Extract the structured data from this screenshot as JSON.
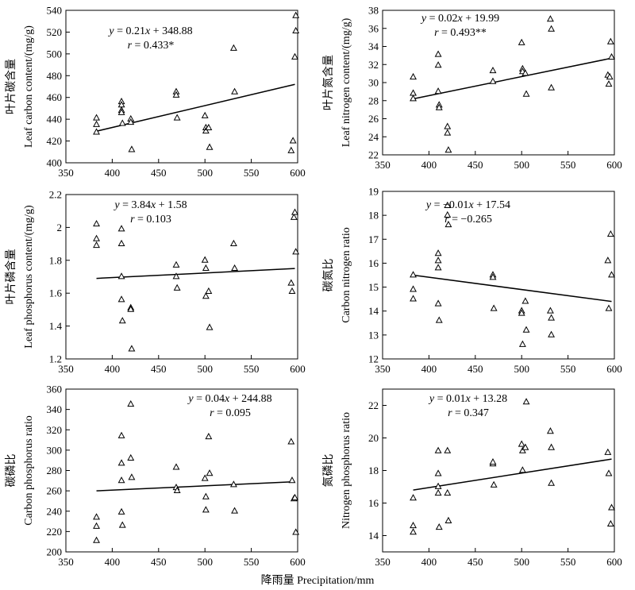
{
  "figure": {
    "xlabel": "降雨量 Precipitation/mm"
  },
  "chart_data": [
    {
      "type": "scatter",
      "ylabel_cn": "叶片碳含量",
      "ylabel_en": "Leaf carbon content/(mg/g)",
      "equation_y": "y",
      "equation_rest": " = 0.21",
      "equation_x": "x",
      "equation_tail": " + 348.88",
      "r_label": "r",
      "r_text": " = 0.433*",
      "xlim": [
        350,
        600
      ],
      "ylim": [
        400,
        540
      ],
      "xticks": [
        350,
        400,
        450,
        500,
        550,
        600
      ],
      "yticks": [
        400,
        420,
        440,
        460,
        480,
        500,
        520,
        540
      ],
      "fit": {
        "x": [
          383,
          597
        ],
        "y": [
          429,
          472
        ]
      },
      "x": [
        383,
        383,
        383,
        410,
        410,
        410,
        410,
        411,
        420,
        420,
        421,
        469,
        469,
        470,
        500,
        501,
        501,
        504,
        505,
        531,
        532,
        593,
        595,
        597,
        598,
        598
      ],
      "y": [
        441,
        435,
        428,
        456,
        453,
        448,
        446,
        436,
        440,
        437,
        412,
        465,
        462,
        441,
        443,
        432,
        429,
        432,
        414,
        505,
        465,
        411,
        420,
        497,
        535,
        521
      ]
    },
    {
      "type": "scatter",
      "ylabel_cn": "叶片氮含量",
      "ylabel_en": "Leaf nitrogen content/(mg/g)",
      "equation_y": "y",
      "equation_rest": " = 0.02",
      "equation_x": "x",
      "equation_tail": " + 19.99",
      "r_label": "r",
      "r_text": " = 0.493**",
      "xlim": [
        350,
        600
      ],
      "ylim": [
        22,
        38
      ],
      "xticks": [
        350,
        400,
        450,
        500,
        550,
        600
      ],
      "yticks": [
        22,
        24,
        26,
        28,
        30,
        32,
        34,
        36,
        38
      ],
      "fit": {
        "x": [
          383,
          597
        ],
        "y": [
          28.2,
          32.7
        ]
      },
      "x": [
        383,
        383,
        383,
        410,
        410,
        410,
        411,
        411,
        420,
        420,
        421,
        469,
        469,
        500,
        501,
        501,
        504,
        505,
        531,
        532,
        532,
        593,
        594,
        595,
        596,
        597
      ],
      "y": [
        30.6,
        28.8,
        28.2,
        33.1,
        31.9,
        29.0,
        27.5,
        27.2,
        25.1,
        24.4,
        22.5,
        31.3,
        30.1,
        34.4,
        31.5,
        31.2,
        31.0,
        28.7,
        37.0,
        35.9,
        29.4,
        30.8,
        29.8,
        30.6,
        34.5,
        32.8
      ]
    },
    {
      "type": "scatter",
      "ylabel_cn": "叶片磷含量",
      "ylabel_en": "Leaf phosphorus content/(mg/g)",
      "equation_y": "y",
      "equation_rest": " = 3.84",
      "equation_x": "x",
      "equation_tail": " + 1.58",
      "r_label": "r",
      "r_text": " = 0.103",
      "xlim": [
        350,
        600
      ],
      "ylim": [
        1.2,
        2.2
      ],
      "xticks": [
        350,
        400,
        450,
        500,
        550,
        600
      ],
      "yticks": [
        1.2,
        1.4,
        1.6,
        1.8,
        2.0,
        2.2
      ],
      "fit": {
        "x": [
          383,
          597
        ],
        "y": [
          1.69,
          1.75
        ]
      },
      "x": [
        383,
        383,
        383,
        410,
        410,
        410,
        410,
        411,
        420,
        420,
        421,
        469,
        469,
        470,
        500,
        501,
        501,
        504,
        505,
        531,
        532,
        593,
        594,
        596,
        597,
        598
      ],
      "y": [
        2.02,
        1.93,
        1.89,
        1.99,
        1.9,
        1.7,
        1.56,
        1.43,
        1.51,
        1.5,
        1.26,
        1.77,
        1.7,
        1.63,
        1.8,
        1.75,
        1.58,
        1.61,
        1.39,
        1.9,
        1.75,
        1.66,
        1.61,
        2.06,
        2.09,
        1.85
      ]
    },
    {
      "type": "scatter",
      "ylabel_cn": "碳氮比",
      "ylabel_en": "Carbon nitrogen ratio",
      "equation_y": "y",
      "equation_rest": " = −0.01",
      "equation_x": "x",
      "equation_tail": " + 17.54",
      "r_label": "r",
      "r_text": " = −0.265",
      "xlim": [
        350,
        600
      ],
      "ylim": [
        12,
        19
      ],
      "xticks": [
        350,
        400,
        450,
        500,
        550,
        600
      ],
      "yticks": [
        12,
        13,
        14,
        15,
        16,
        17,
        18,
        19
      ],
      "fit": {
        "x": [
          383,
          597
        ],
        "y": [
          15.5,
          14.4
        ]
      },
      "x": [
        383,
        383,
        383,
        410,
        410,
        410,
        410,
        411,
        420,
        420,
        421,
        469,
        469,
        470,
        500,
        500,
        501,
        504,
        505,
        531,
        532,
        532,
        593,
        594,
        596,
        597
      ],
      "y": [
        15.5,
        14.9,
        14.5,
        16.4,
        16.1,
        15.8,
        14.3,
        13.6,
        18.4,
        18.0,
        17.6,
        15.5,
        15.4,
        14.1,
        14.0,
        13.9,
        12.6,
        14.4,
        13.2,
        14.0,
        13.7,
        13.0,
        16.1,
        14.1,
        17.2,
        15.5
      ]
    },
    {
      "type": "scatter",
      "ylabel_cn": "碳磷比",
      "ylabel_en": "Carbon phosphorus ratio",
      "equation_y": "y",
      "equation_rest": " = 0.04",
      "equation_x": "x",
      "equation_tail": " + 244.88",
      "r_label": "r",
      "r_text": " = 0.095",
      "xlim": [
        350,
        600
      ],
      "ylim": [
        200,
        360
      ],
      "xticks": [
        350,
        400,
        450,
        500,
        550,
        600
      ],
      "yticks": [
        200,
        220,
        240,
        260,
        280,
        300,
        320,
        340,
        360
      ],
      "fit": {
        "x": [
          383,
          597
        ],
        "y": [
          260,
          269
        ]
      },
      "x": [
        383,
        383,
        383,
        410,
        410,
        410,
        410,
        411,
        420,
        420,
        421,
        469,
        469,
        470,
        500,
        501,
        501,
        504,
        505,
        531,
        532,
        593,
        594,
        596,
        597,
        598
      ],
      "y": [
        234,
        225,
        211,
        314,
        287,
        270,
        239,
        226,
        345,
        292,
        273,
        283,
        263,
        260,
        272,
        254,
        241,
        313,
        277,
        266,
        240,
        308,
        270,
        252,
        253,
        219
      ],
      "comment": ""
    },
    {
      "type": "scatter",
      "ylabel_cn": "氮磷比",
      "ylabel_en": "Nitrogen phosphorus ratio",
      "equation_y": "y",
      "equation_rest": " = 0.01",
      "equation_x": "x",
      "equation_tail": " + 13.28",
      "r_label": "r",
      "r_text": " = 0.347",
      "xlim": [
        350,
        600
      ],
      "ylim": [
        13,
        23
      ],
      "xticks": [
        350,
        400,
        450,
        500,
        550,
        600
      ],
      "yticks": [
        14,
        16,
        18,
        20,
        22
      ],
      "fit": {
        "x": [
          383,
          597
        ],
        "y": [
          16.8,
          18.7
        ]
      },
      "x": [
        383,
        383,
        383,
        410,
        410,
        410,
        410,
        411,
        420,
        420,
        421,
        469,
        469,
        470,
        500,
        501,
        501,
        504,
        505,
        531,
        532,
        532,
        593,
        594,
        596,
        597
      ],
      "y": [
        16.3,
        14.6,
        14.2,
        19.2,
        17.8,
        17.0,
        16.6,
        14.5,
        19.2,
        16.6,
        14.9,
        18.4,
        18.5,
        17.1,
        19.6,
        19.2,
        18.0,
        19.4,
        22.2,
        20.4,
        19.4,
        17.2,
        19.1,
        17.8,
        14.7,
        15.7
      ]
    }
  ]
}
